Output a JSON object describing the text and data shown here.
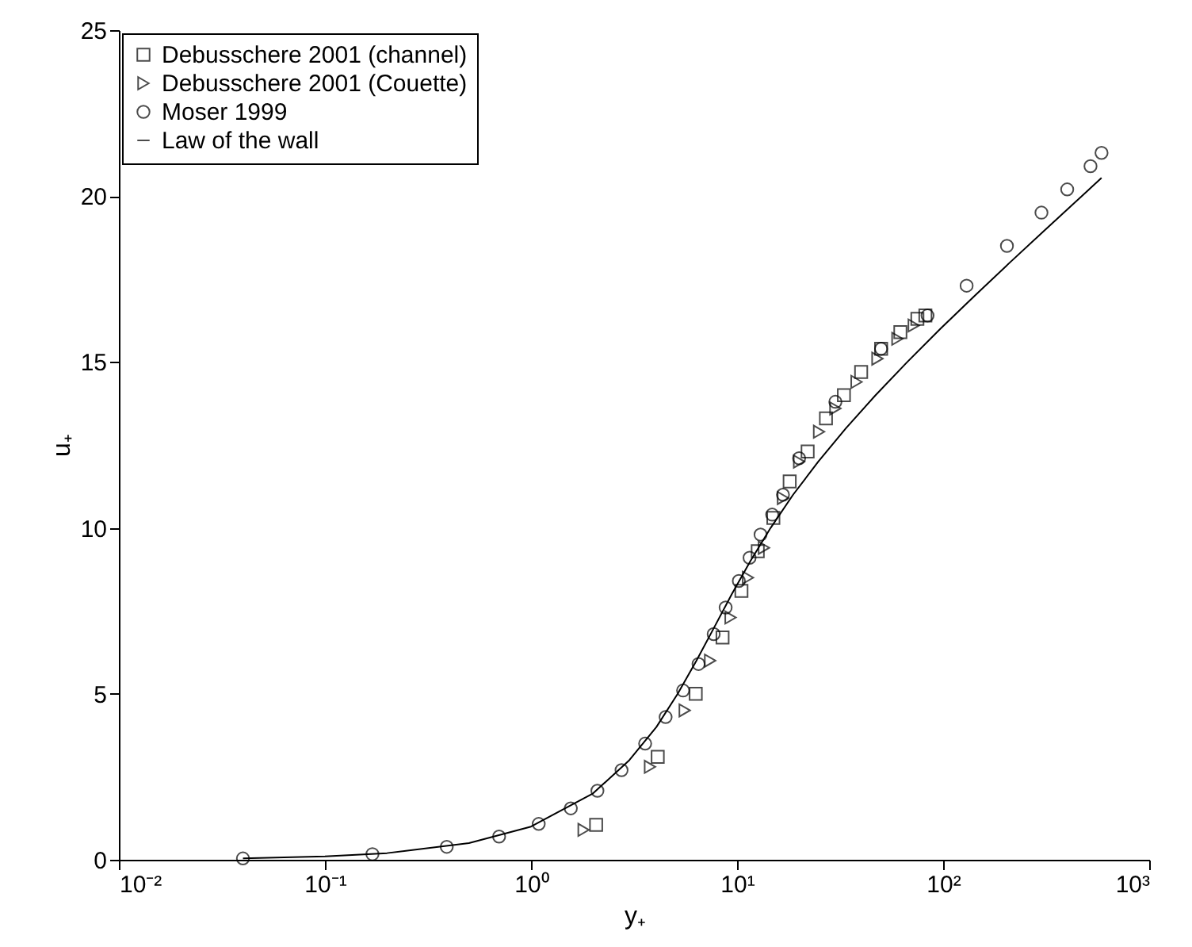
{
  "chart_data": {
    "type": "scatter",
    "xlabel": "y₊",
    "ylabel": "u₊",
    "log": "x",
    "xlim": [
      0.01,
      1000
    ],
    "xticks": [
      {
        "value": 0.01,
        "label": "10⁻²"
      },
      {
        "value": 0.1,
        "label": "10⁻¹"
      },
      {
        "value": 1,
        "label": "10⁰"
      },
      {
        "value": 10,
        "label": "10¹"
      },
      {
        "value": 100,
        "label": "10²"
      },
      {
        "value": 1000,
        "label": "10³"
      }
    ],
    "ylim": [
      0,
      25
    ],
    "yticks": [
      0,
      5,
      10,
      15,
      20,
      25
    ],
    "grid": false,
    "legend": "top left",
    "series": [
      {
        "name": "Debusschere 2001 (channel)",
        "color": "#000000",
        "marker": "square",
        "x": [
          2.07,
          4.12,
          6.3,
          8.5,
          10.5,
          12.6,
          15.0,
          18,
          22,
          27,
          33,
          40,
          50,
          62,
          75,
          82
        ],
        "values": [
          1.05,
          3.1,
          5.0,
          6.7,
          8.1,
          9.3,
          10.3,
          11.4,
          12.3,
          13.3,
          14.0,
          14.7,
          15.4,
          15.9,
          16.3,
          16.4
        ]
      },
      {
        "name": "Debusschere 2001 (Couette)",
        "color": "#000000",
        "marker": "triangle",
        "x": [
          1.8,
          3.78,
          5.57,
          7.4,
          9.3,
          11.3,
          13.5,
          16.7,
          20,
          25,
          30,
          38,
          48,
          60,
          72
        ],
        "values": [
          0.9,
          2.8,
          4.5,
          6.0,
          7.3,
          8.5,
          9.4,
          10.9,
          12.0,
          12.9,
          13.6,
          14.4,
          15.1,
          15.7,
          16.1
        ]
      },
      {
        "name": "Moser 1999",
        "color": "#000000",
        "marker": "circle",
        "x": [
          0.04,
          0.17,
          0.39,
          0.7,
          1.09,
          1.56,
          2.1,
          2.75,
          3.58,
          4.5,
          5.47,
          6.5,
          7.7,
          8.8,
          10.2,
          11.5,
          13.0,
          14.8,
          16.7,
          20,
          30,
          50,
          84,
          130,
          204,
          300,
          400,
          519,
          587
        ],
        "values": [
          0.04,
          0.17,
          0.39,
          0.7,
          1.08,
          1.55,
          2.08,
          2.7,
          3.5,
          4.3,
          5.1,
          5.9,
          6.8,
          7.6,
          8.4,
          9.1,
          9.8,
          10.4,
          11.0,
          12.1,
          13.8,
          15.4,
          16.4,
          17.3,
          18.5,
          19.5,
          20.2,
          20.9,
          21.3
        ]
      },
      {
        "name": "Law of the wall",
        "color": "#000000",
        "type": "line",
        "marker": "none",
        "line_style": "solid",
        "x": [
          0.04,
          0.1,
          0.2,
          0.5,
          1.0,
          2.0,
          3.0,
          4.06,
          5.15,
          6.35,
          7.74,
          9.42,
          11.6,
          14.55,
          18.7,
          24.8,
          33.7,
          47,
          67,
          97,
          142.5,
          211,
          315,
          471,
          587
        ],
        "values": [
          0.04,
          0.1,
          0.2,
          0.5,
          1,
          2,
          3,
          4,
          5,
          6,
          7,
          8,
          9,
          10,
          11,
          12,
          13,
          14,
          15,
          16,
          17,
          18,
          19,
          20,
          20.55
        ]
      }
    ]
  }
}
